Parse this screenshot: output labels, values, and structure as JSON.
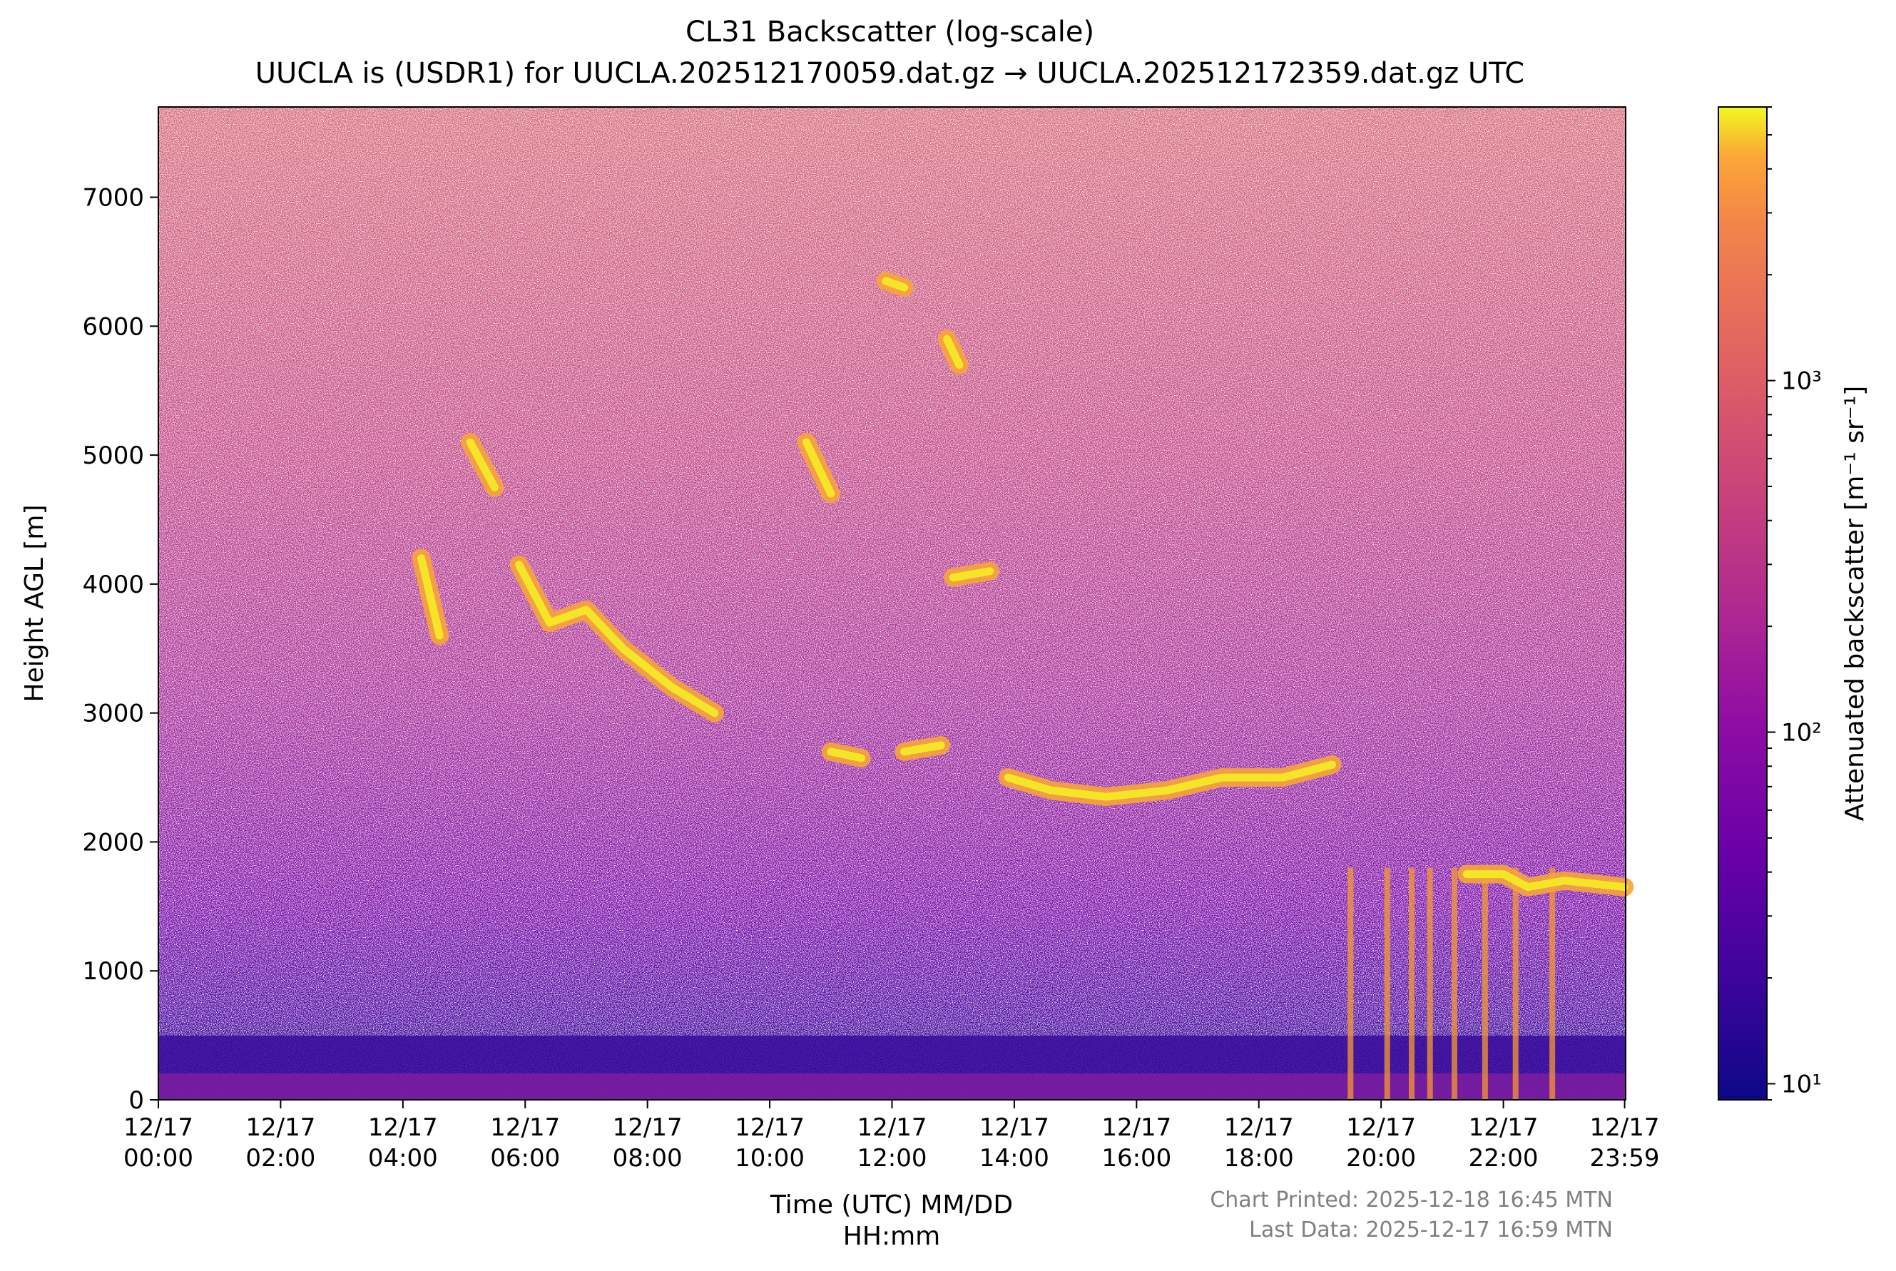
{
  "chart_data": {
    "type": "heatmap",
    "title": "CL31 Backscatter (log-scale)",
    "subtitle": "UUCLA is (USDR1) for UUCLA.202512170059.dat.gz → UUCLA.202512172359.dat.gz UTC",
    "xlabel_line1": "Time (UTC) MM/DD",
    "xlabel_line2": "HH:mm",
    "ylabel": "Height AGL [m]",
    "x_range_hours": [
      0,
      24
    ],
    "ylim": [
      0,
      7700
    ],
    "x_ticks": [
      {
        "date": "12/17",
        "time": "00:00",
        "hour": 0
      },
      {
        "date": "12/17",
        "time": "02:00",
        "hour": 2
      },
      {
        "date": "12/17",
        "time": "04:00",
        "hour": 4
      },
      {
        "date": "12/17",
        "time": "06:00",
        "hour": 6
      },
      {
        "date": "12/17",
        "time": "08:00",
        "hour": 8
      },
      {
        "date": "12/17",
        "time": "10:00",
        "hour": 10
      },
      {
        "date": "12/17",
        "time": "12:00",
        "hour": 12
      },
      {
        "date": "12/17",
        "time": "14:00",
        "hour": 14
      },
      {
        "date": "12/17",
        "time": "16:00",
        "hour": 16
      },
      {
        "date": "12/17",
        "time": "18:00",
        "hour": 18
      },
      {
        "date": "12/17",
        "time": "20:00",
        "hour": 20
      },
      {
        "date": "12/17",
        "time": "22:00",
        "hour": 22
      },
      {
        "date": "12/17",
        "time": "23:59",
        "hour": 23.983
      }
    ],
    "y_ticks": [
      0,
      1000,
      2000,
      3000,
      4000,
      5000,
      6000,
      7000
    ],
    "colorbar": {
      "label": "Attenuated backscatter [m⁻¹ sr⁻¹]",
      "scale": "log",
      "range": [
        9,
        6000
      ],
      "colormap": "plasma",
      "ticks": [
        {
          "value": 10,
          "label": "10¹"
        },
        {
          "value": 100,
          "label": "10²"
        },
        {
          "value": 1000,
          "label": "10³"
        }
      ]
    },
    "features": [
      {
        "name": "cloud layer",
        "points": [
          [
            5.9,
            4150
          ],
          [
            6.4,
            3700
          ],
          [
            7.0,
            3800
          ],
          [
            7.6,
            3500
          ],
          [
            8.4,
            3200
          ],
          [
            9.1,
            3000
          ]
        ]
      },
      {
        "name": "cloud layer",
        "points": [
          [
            13.9,
            2500
          ],
          [
            14.6,
            2400
          ],
          [
            15.5,
            2350
          ],
          [
            16.5,
            2400
          ],
          [
            17.4,
            2500
          ],
          [
            18.4,
            2500
          ],
          [
            19.2,
            2600
          ]
        ]
      },
      {
        "name": "cloud layer",
        "points": [
          [
            21.4,
            1750
          ],
          [
            22.0,
            1750
          ],
          [
            22.4,
            1650
          ],
          [
            23.0,
            1700
          ],
          [
            23.98,
            1650
          ]
        ]
      },
      {
        "name": "cloud patch",
        "points": [
          [
            11.0,
            2700
          ],
          [
            11.5,
            2650
          ]
        ]
      },
      {
        "name": "cloud patch",
        "points": [
          [
            12.2,
            2700
          ],
          [
            12.8,
            2750
          ]
        ]
      },
      {
        "name": "cloud patch",
        "points": [
          [
            10.6,
            5100
          ],
          [
            11.0,
            4700
          ]
        ]
      },
      {
        "name": "cloud patch",
        "points": [
          [
            13.0,
            4050
          ],
          [
            13.6,
            4100
          ]
        ]
      },
      {
        "name": "cloud patch",
        "points": [
          [
            4.3,
            4200
          ],
          [
            4.6,
            3600
          ]
        ]
      },
      {
        "name": "cloud patch",
        "points": [
          [
            5.1,
            5100
          ],
          [
            5.5,
            4750
          ]
        ]
      },
      {
        "name": "cloud patch",
        "points": [
          [
            11.9,
            6350
          ],
          [
            12.2,
            6300
          ]
        ]
      },
      {
        "name": "cloud patch",
        "points": [
          [
            12.9,
            5900
          ],
          [
            13.1,
            5700
          ]
        ]
      }
    ],
    "fallstreaks_hours": [
      19.5,
      20.1,
      20.5,
      20.8,
      21.2,
      21.7,
      22.2,
      22.8
    ],
    "grid": false
  },
  "footer": {
    "printed": "Chart Printed: 2025-12-18 16:45 MTN",
    "last_data": "Last Data: 2025-12-17 16:59 MTN"
  }
}
